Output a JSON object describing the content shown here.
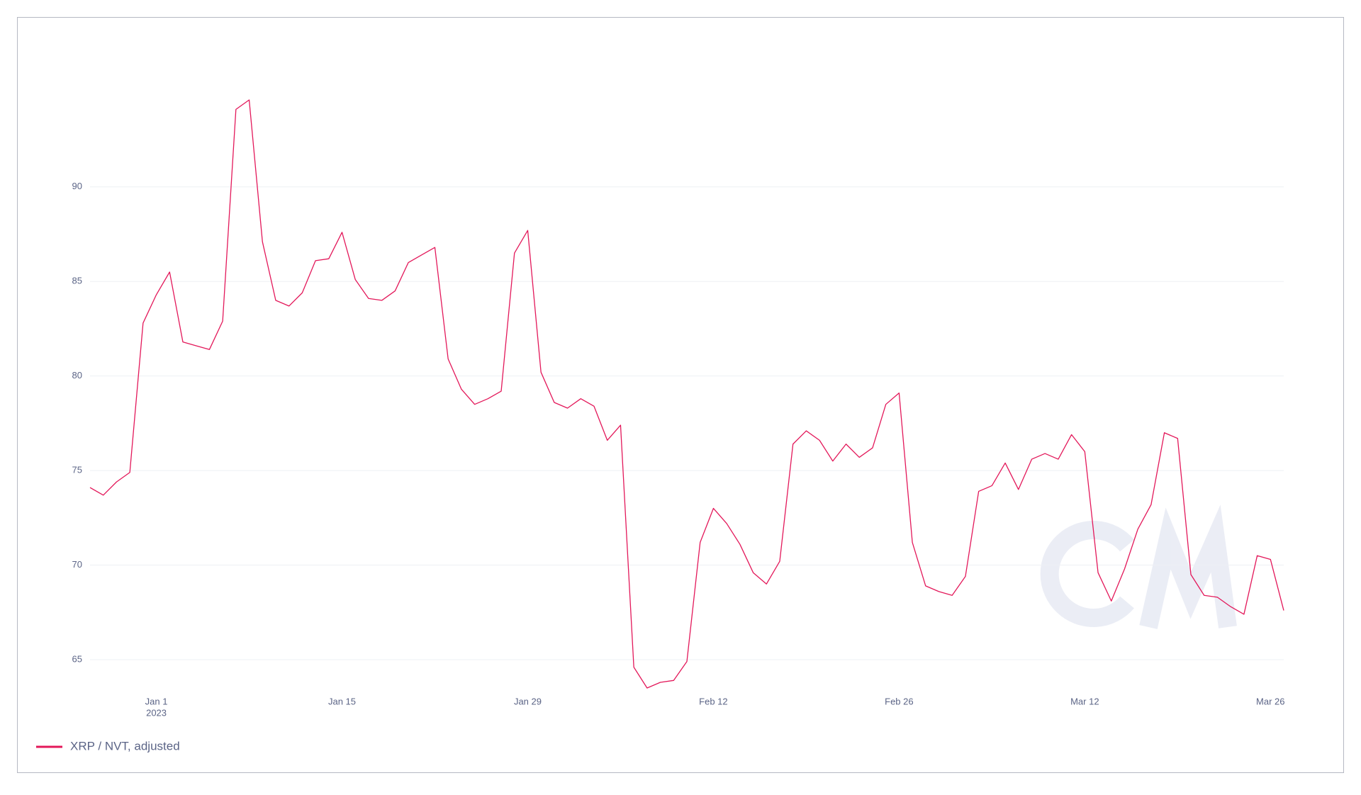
{
  "chart_data": {
    "type": "line",
    "x": [
      "2022-12-27",
      "2022-12-28",
      "2022-12-29",
      "2022-12-30",
      "2022-12-31",
      "2023-01-01",
      "2023-01-02",
      "2023-01-03",
      "2023-01-04",
      "2023-01-05",
      "2023-01-06",
      "2023-01-07",
      "2023-01-08",
      "2023-01-09",
      "2023-01-10",
      "2023-01-11",
      "2023-01-12",
      "2023-01-13",
      "2023-01-14",
      "2023-01-15",
      "2023-01-16",
      "2023-01-17",
      "2023-01-18",
      "2023-01-19",
      "2023-01-20",
      "2023-01-21",
      "2023-01-22",
      "2023-01-23",
      "2023-01-24",
      "2023-01-25",
      "2023-01-26",
      "2023-01-27",
      "2023-01-28",
      "2023-01-29",
      "2023-01-30",
      "2023-01-31",
      "2023-02-01",
      "2023-02-02",
      "2023-02-03",
      "2023-02-04",
      "2023-02-05",
      "2023-02-06",
      "2023-02-07",
      "2023-02-08",
      "2023-02-09",
      "2023-02-10",
      "2023-02-11",
      "2023-02-12",
      "2023-02-13",
      "2023-02-14",
      "2023-02-15",
      "2023-02-16",
      "2023-02-17",
      "2023-02-18",
      "2023-02-19",
      "2023-02-20",
      "2023-02-21",
      "2023-02-22",
      "2023-02-23",
      "2023-02-24",
      "2023-02-25",
      "2023-02-26",
      "2023-02-27",
      "2023-02-28",
      "2023-03-01",
      "2023-03-02",
      "2023-03-03",
      "2023-03-04",
      "2023-03-05",
      "2023-03-06",
      "2023-03-07",
      "2023-03-08",
      "2023-03-09",
      "2023-03-10",
      "2023-03-11",
      "2023-03-12",
      "2023-03-13",
      "2023-03-14",
      "2023-03-15",
      "2023-03-16",
      "2023-03-17",
      "2023-03-18",
      "2023-03-19",
      "2023-03-20",
      "2023-03-21",
      "2023-03-22",
      "2023-03-23",
      "2023-03-24",
      "2023-03-25",
      "2023-03-26",
      "2023-03-27"
    ],
    "series": [
      {
        "name": "XRP / NVT, adjusted",
        "color": "#e3185a",
        "values": [
          74.1,
          73.7,
          74.4,
          74.9,
          82.8,
          84.3,
          85.5,
          81.8,
          81.6,
          81.4,
          82.9,
          94.1,
          94.6,
          87.1,
          84.0,
          83.7,
          84.4,
          86.1,
          86.2,
          87.6,
          85.1,
          84.1,
          84.0,
          84.5,
          86.0,
          86.4,
          86.8,
          80.9,
          79.3,
          78.5,
          78.8,
          79.2,
          86.5,
          87.7,
          80.2,
          78.6,
          78.3,
          78.8,
          78.4,
          76.6,
          77.4,
          64.6,
          63.5,
          63.8,
          63.9,
          64.9,
          71.2,
          73.0,
          72.2,
          71.1,
          69.6,
          69.0,
          70.2,
          76.4,
          77.1,
          76.6,
          75.5,
          76.4,
          75.7,
          76.2,
          78.5,
          79.1,
          71.2,
          68.9,
          68.6,
          68.4,
          69.4,
          73.9,
          74.2,
          75.4,
          74.0,
          75.6,
          75.9,
          75.6,
          76.9,
          76.0,
          69.6,
          68.1,
          69.8,
          71.9,
          73.2,
          77.0,
          76.7,
          69.5,
          68.4,
          68.3,
          67.8,
          67.4,
          70.5,
          70.3,
          67.6
        ]
      }
    ],
    "xlim": [
      "2022-12-27",
      "2023-03-27"
    ],
    "xticks": [
      {
        "value": "2023-01-01",
        "label": [
          "Jan 1",
          "2023"
        ]
      },
      {
        "value": "2023-01-15",
        "label": "Jan 15"
      },
      {
        "value": "2023-01-29",
        "label": "Jan 29"
      },
      {
        "value": "2023-02-12",
        "label": "Feb 12"
      },
      {
        "value": "2023-02-26",
        "label": "Feb 26"
      },
      {
        "value": "2023-03-12",
        "label": "Mar 12"
      },
      {
        "value": "2023-03-26",
        "label": "Mar 26"
      }
    ],
    "ylim": [
      63.5,
      95.5
    ],
    "yticks": [
      65,
      70,
      75,
      80,
      85,
      90
    ],
    "grid": true,
    "legend": "bottom-left"
  }
}
